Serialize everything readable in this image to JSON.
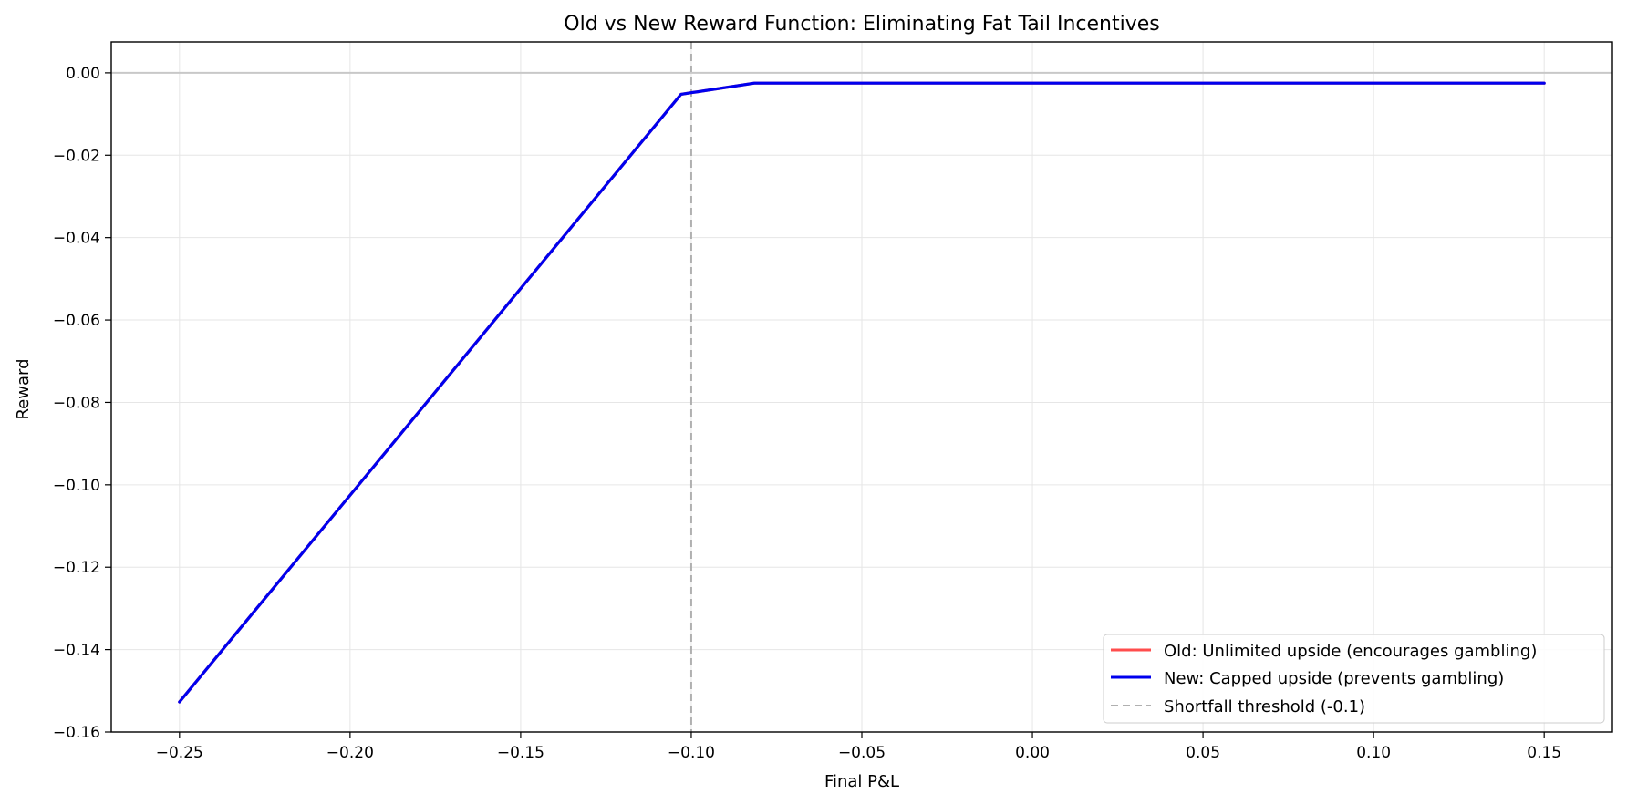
{
  "chart_data": {
    "type": "line",
    "title": "Old vs New Reward Function: Eliminating Fat Tail Incentives",
    "xlabel": "Final P&L",
    "ylabel": "Reward",
    "xlim": [
      -0.27,
      0.17
    ],
    "ylim": [
      -0.16,
      0.0075
    ],
    "xticks": [
      -0.25,
      -0.2,
      -0.15,
      -0.1,
      -0.05,
      0.0,
      0.05,
      0.1,
      0.15
    ],
    "xtick_labels": [
      "−0.25",
      "−0.20",
      "−0.15",
      "−0.10",
      "−0.05",
      "0.00",
      "0.05",
      "0.10",
      "0.15"
    ],
    "yticks": [
      0.0,
      -0.02,
      -0.04,
      -0.06,
      -0.08,
      -0.1,
      -0.12,
      -0.14,
      -0.16
    ],
    "ytick_labels": [
      "0.00",
      "−0.02",
      "−0.04",
      "−0.06",
      "−0.08",
      "−0.10",
      "−0.12",
      "−0.14",
      "−0.16"
    ],
    "grid": true,
    "legend_position": "lower-right",
    "series": [
      {
        "name": "Old: Unlimited upside (encourages gambling)",
        "color": "#ff4d4d",
        "style": "solid",
        "x": [
          -0.25,
          -0.103,
          -0.0815,
          0.15
        ],
        "y": [
          -0.1527,
          -0.0052,
          -0.0025,
          -0.0025
        ]
      },
      {
        "name": "New: Capped upside (prevents gambling)",
        "color": "#0000ee",
        "style": "solid",
        "x": [
          -0.25,
          -0.103,
          -0.0815,
          0.15
        ],
        "y": [
          -0.1527,
          -0.0052,
          -0.0025,
          -0.0025
        ]
      }
    ],
    "reference_lines": [
      {
        "orientation": "vertical",
        "value": -0.1,
        "name": "Shortfall threshold (-0.1)",
        "color": "#b0b0b0",
        "style": "dashed"
      },
      {
        "orientation": "horizontal",
        "value": 0.0,
        "color": "#c8c8c8",
        "style": "solid"
      }
    ]
  }
}
